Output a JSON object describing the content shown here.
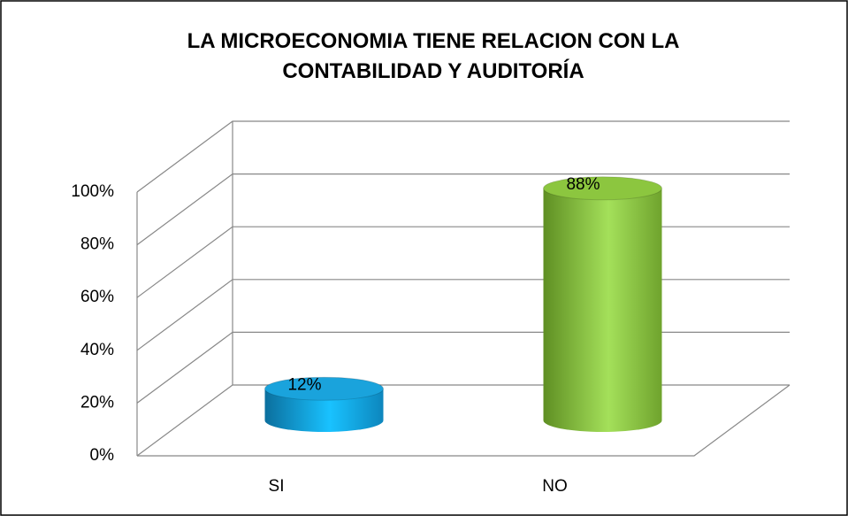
{
  "chart_data": {
    "type": "bar3d",
    "title": "LA MICROECONOMIA TIENE RELACION CON LA CONTABILIDAD Y AUDITORÍA",
    "categories": [
      "SI",
      "NO"
    ],
    "values": [
      12,
      88
    ],
    "value_labels": [
      "12%",
      "88%"
    ],
    "colors": [
      "#1aa3dc",
      "#8cc63f"
    ],
    "ylim": [
      0,
      100
    ],
    "yticks": [
      {
        "value": 0,
        "label": "0%"
      },
      {
        "value": 20,
        "label": "20%"
      },
      {
        "value": 40,
        "label": "40%"
      },
      {
        "value": 60,
        "label": "60%"
      },
      {
        "value": 80,
        "label": "80%"
      },
      {
        "value": 100,
        "label": "100%"
      }
    ],
    "grid": true
  }
}
